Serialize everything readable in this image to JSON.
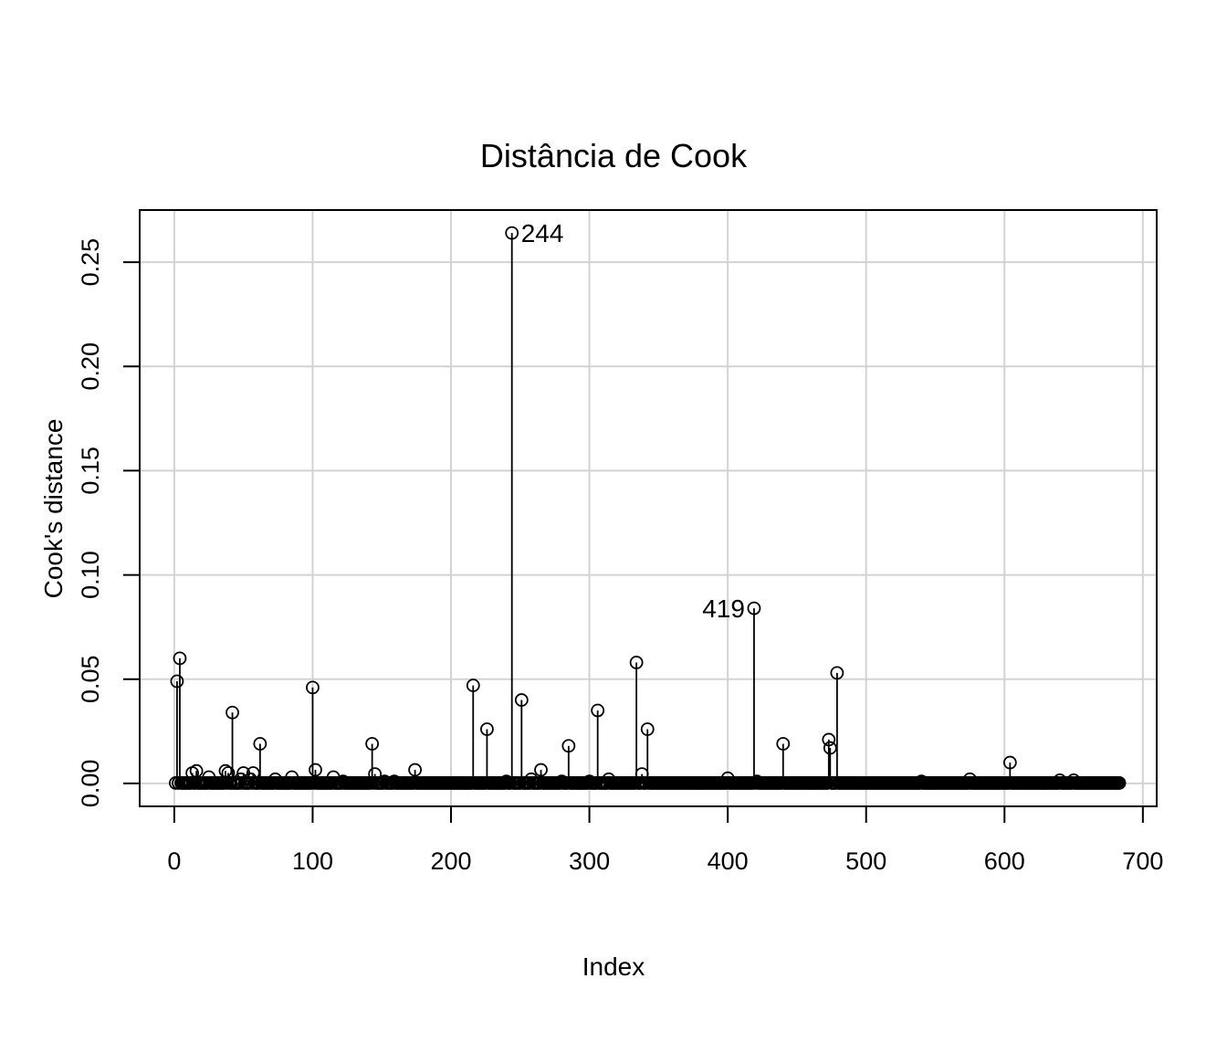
{
  "chart_data": {
    "type": "scatter",
    "title": "Distância de Cook",
    "xlabel": "Index",
    "ylabel": "Cook's distance",
    "xlim": [
      -25,
      710
    ],
    "ylim": [
      -0.011,
      0.275
    ],
    "xticks": [
      0,
      100,
      200,
      300,
      400,
      500,
      600,
      700
    ],
    "yticks": [
      0.0,
      0.05,
      0.1,
      0.15,
      0.2,
      0.25
    ],
    "xtick_labels": [
      "0",
      "100",
      "200",
      "300",
      "400",
      "500",
      "600",
      "700"
    ],
    "ytick_labels": [
      "0.00",
      "0.05",
      "0.10",
      "0.15",
      "0.20",
      "0.25"
    ],
    "grid": true,
    "style": "points with vertical lines to zero (Cook's distance plot)",
    "n_points": 683,
    "baseline_value": 0.0002,
    "series": [
      {
        "x": [
          2,
          4,
          13,
          16,
          25,
          37,
          39,
          42,
          48,
          50,
          55,
          57,
          62,
          73,
          85,
          100,
          102,
          115,
          122,
          143,
          145,
          152,
          159,
          174,
          216,
          226,
          240,
          244,
          251,
          258,
          265,
          280,
          285,
          300,
          306,
          314,
          334,
          338,
          342,
          400,
          419,
          421,
          440,
          473,
          474,
          479,
          540,
          575,
          604,
          640,
          650
        ],
        "values": [
          0.049,
          0.06,
          0.005,
          0.006,
          0.003,
          0.006,
          0.005,
          0.034,
          0.002,
          0.005,
          0.002,
          0.005,
          0.019,
          0.002,
          0.003,
          0.046,
          0.0065,
          0.003,
          0.001,
          0.019,
          0.0045,
          0.001,
          0.001,
          0.0065,
          0.047,
          0.026,
          0.001,
          0.264,
          0.04,
          0.002,
          0.0065,
          0.001,
          0.018,
          0.001,
          0.035,
          0.002,
          0.058,
          0.0045,
          0.026,
          0.0025,
          0.084,
          0.001,
          0.019,
          0.021,
          0.017,
          0.053,
          0.001,
          0.002,
          0.01,
          0.0015,
          0.0015
        ]
      }
    ],
    "annotations": [
      {
        "label": "244",
        "x": 244,
        "y": 0.264,
        "side": "right"
      },
      {
        "label": "419",
        "x": 419,
        "y": 0.084,
        "side": "left"
      }
    ]
  }
}
